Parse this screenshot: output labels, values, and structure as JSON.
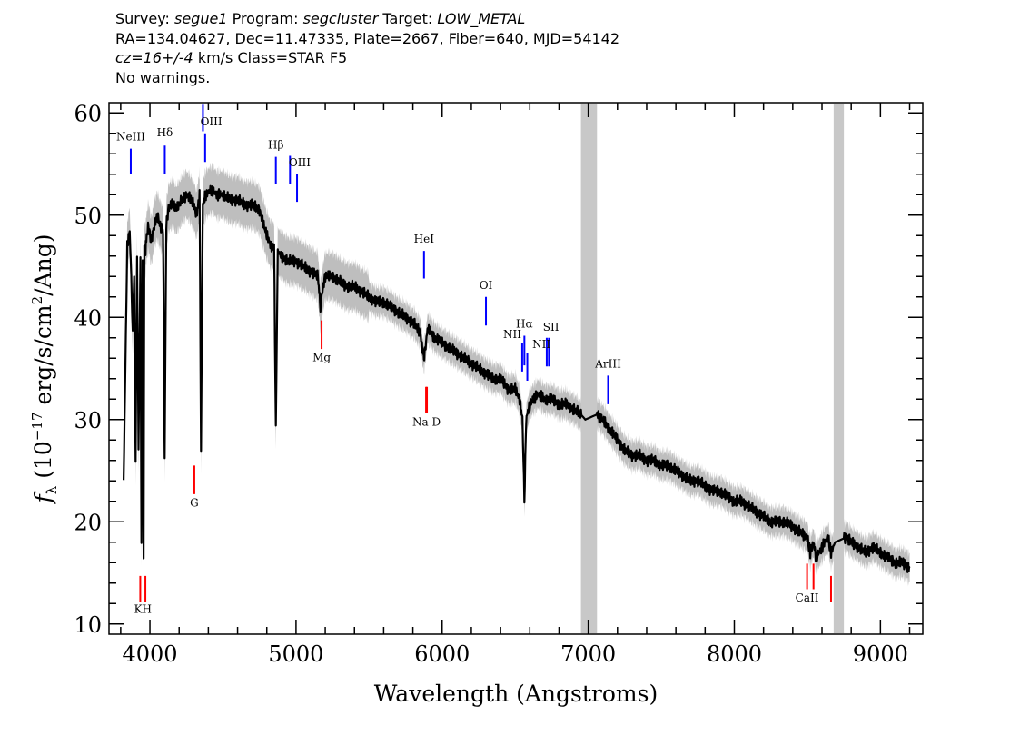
{
  "header": {
    "survey_label": "Survey:",
    "survey": "segue1",
    "program_label": "Program:",
    "program": "segcluster",
    "target_label": "Target:",
    "target": "LOW_METAL",
    "position_line": "RA=134.04627, Dec=11.47335, Plate=2667, Fiber=640, MJD=54142",
    "cz_value": "cz=16+/-4",
    "cz_rest": "km/s Class=STAR F5",
    "warnings": "No warnings."
  },
  "colors": {
    "flux": "#000000",
    "error_band": "#bebebe",
    "masked_band": "#c8c8c8",
    "emission_line": "#0000ff",
    "absorption_line": "#ff0000"
  },
  "chart_data": {
    "type": "line",
    "title": "",
    "xlabel": "Wavelength (Angstroms)",
    "ylabel_symbol": "f",
    "ylabel_subscript": "λ",
    "ylabel_open": "(10",
    "ylabel_exp": "−17",
    "ylabel_mid": "erg/s/cm",
    "ylabel_exp2": "2",
    "ylabel_close": "/Ang)",
    "xlim": [
      3720,
      9290
    ],
    "ylim": [
      9.0,
      61.0
    ],
    "xticks": [
      4000,
      5000,
      6000,
      7000,
      8000,
      9000
    ],
    "yticks": [
      10,
      20,
      30,
      40,
      50,
      60
    ],
    "grid": false,
    "series": [
      {
        "x": [
          3820,
          3845,
          3862,
          3872,
          3882,
          3892,
          3902,
          3912,
          3922,
          3935,
          3942,
          3950,
          3957,
          3962,
          3970,
          3978,
          3990,
          4000,
          4010,
          4030,
          4050,
          4070,
          4090,
          4101,
          4112,
          4125,
          4140,
          4160,
          4180,
          4200,
          4220,
          4250,
          4280,
          4300,
          4320,
          4340,
          4350,
          4362,
          4380,
          4420,
          4460,
          4500,
          4550,
          4600,
          4650,
          4700,
          4750,
          4800,
          4830,
          4850,
          4862,
          4875,
          4900,
          4950,
          5000,
          5050,
          5100,
          5150,
          5167,
          5175,
          5185,
          5200,
          5250,
          5300,
          5350,
          5400,
          5450,
          5500,
          5550,
          5600,
          5650,
          5700,
          5750,
          5800,
          5850,
          5875,
          5890,
          5900,
          5920,
          5950,
          6000,
          6050,
          6100,
          6150,
          6200,
          6250,
          6300,
          6350,
          6400,
          6450,
          6500,
          6530,
          6550,
          6563,
          6575,
          6590,
          6620,
          6660,
          6700,
          6750,
          6800,
          6850,
          6900,
          6950,
          6980,
          7060,
          7100,
          7150,
          7200,
          7250,
          7300,
          7350,
          7400,
          7450,
          7500,
          7550,
          7600,
          7650,
          7700,
          7750,
          7800,
          7850,
          7900,
          7950,
          8000,
          8050,
          8100,
          8150,
          8200,
          8250,
          8300,
          8350,
          8400,
          8450,
          8498,
          8520,
          8542,
          8560,
          8600,
          8640,
          8662,
          8690,
          8770,
          8800,
          8850,
          8900,
          8950,
          9000,
          9050,
          9100,
          9150,
          9200
        ],
        "y": [
          24,
          47,
          48.5,
          44,
          38.5,
          44,
          26,
          46,
          27,
          46,
          18,
          45,
          17,
          47,
          46.5,
          48,
          49,
          48,
          47.5,
          49,
          50,
          49,
          48.5,
          26,
          49,
          50.5,
          51,
          51,
          50.5,
          51,
          51.5,
          52,
          51.5,
          51,
          50,
          52,
          27,
          51,
          52,
          52.5,
          52,
          52,
          51.5,
          51.5,
          51,
          51,
          50.5,
          48,
          47,
          47,
          29,
          46.5,
          46,
          45.5,
          45.5,
          45,
          44.5,
          44,
          41,
          42,
          43,
          44,
          44,
          43.5,
          43,
          43,
          42.5,
          42,
          41.5,
          41.5,
          41,
          40.5,
          40,
          39.5,
          38.5,
          36,
          37.5,
          39,
          38.5,
          38,
          37.5,
          37,
          36.5,
          36,
          35.5,
          35,
          34.5,
          34,
          34,
          33,
          33,
          32,
          30,
          22,
          30,
          31,
          32,
          32.5,
          32,
          32,
          31.5,
          31.5,
          31,
          30.5,
          30,
          30.5,
          30,
          29,
          28,
          27,
          26.5,
          26.5,
          26,
          26,
          25.5,
          25.5,
          25,
          24.5,
          24,
          24,
          23.5,
          23,
          23,
          22.5,
          22,
          22,
          21.5,
          21,
          20.5,
          20,
          20,
          20,
          19.5,
          19,
          18.5,
          17,
          18,
          16.5,
          17.5,
          18.5,
          17,
          18,
          18.5,
          18,
          17.5,
          17,
          17.5,
          17,
          16.5,
          16,
          16,
          15.5
        ]
      }
    ],
    "masked_regions": [
      [
        6950,
        7060
      ],
      [
        8680,
        8750
      ]
    ],
    "emission_lines": [
      {
        "label": "NeIII",
        "x": 3869,
        "y_top": 56.5,
        "y_bottom": 54.0
      },
      {
        "label": "Hδ",
        "x": 4102,
        "y_top": 56.8,
        "y_bottom": 54.0
      },
      {
        "label": "OIII",
        "x": 4363,
        "y_top": 60.8,
        "y_bottom": 58.2
      },
      {
        "label": "",
        "x": 4378,
        "y_top": 58.0,
        "y_bottom": 55.2
      },
      {
        "label": "Hβ",
        "x": 4862,
        "y_top": 55.7,
        "y_bottom": 53.0
      },
      {
        "label": "OIII",
        "x": 4959,
        "y_top": 55.8,
        "y_bottom": 53.0
      },
      {
        "label": "",
        "x": 5007,
        "y_top": 54.0,
        "y_bottom": 51.3
      },
      {
        "label": "HeI",
        "x": 5876,
        "y_top": 46.5,
        "y_bottom": 43.8
      },
      {
        "label": "OI",
        "x": 6300,
        "y_top": 42.0,
        "y_bottom": 39.2
      },
      {
        "label": "NII",
        "x": 6548,
        "y_top": 37.5,
        "y_bottom": 34.7
      },
      {
        "label": "Hα",
        "x": 6563,
        "y_top": 38.2,
        "y_bottom": 35.3
      },
      {
        "label": "",
        "x": 6583,
        "y_top": 36.5,
        "y_bottom": 33.8
      },
      {
        "label": "NII",
        "x": 6716,
        "y_top": 38.0,
        "y_bottom": 35.2
      },
      {
        "label": "SII",
        "x": 6731,
        "y_top": 38.0,
        "y_bottom": 35.2
      },
      {
        "label": "ArIII",
        "x": 7136,
        "y_top": 34.3,
        "y_bottom": 31.5
      }
    ],
    "absorption_lines": [
      {
        "label": "K",
        "x": 3934,
        "y_top": 14.7,
        "y_bottom": 12.2
      },
      {
        "label": "H",
        "x": 3969,
        "y_top": 14.7,
        "y_bottom": 12.2
      },
      {
        "label": "G",
        "x": 4304,
        "y_top": 25.5,
        "y_bottom": 22.7
      },
      {
        "label": "Mg",
        "x": 5175,
        "y_top": 39.7,
        "y_bottom": 36.9
      },
      {
        "label": "Na",
        "x": 5890,
        "y_top": 33.2,
        "y_bottom": 30.6
      },
      {
        "label": "D",
        "x": 5896,
        "y_top": 33.2,
        "y_bottom": 30.6
      },
      {
        "label": "CaII",
        "x": 8498,
        "y_top": 15.9,
        "y_bottom": 13.4
      },
      {
        "label": "",
        "x": 8542,
        "y_top": 15.9,
        "y_bottom": 13.4
      },
      {
        "label": "",
        "x": 8662,
        "y_top": 14.7,
        "y_bottom": 12.2
      }
    ],
    "line_label_groups": [
      {
        "text": "NeIII",
        "x": 3869,
        "y": 57.3,
        "group": "emission"
      },
      {
        "text": "Hδ",
        "x": 4102,
        "y": 57.7,
        "group": "emission"
      },
      {
        "text": "OIII",
        "x": 4420,
        "y": 58.8,
        "group": "emission"
      },
      {
        "text": "Hβ",
        "x": 4862,
        "y": 56.5,
        "group": "emission"
      },
      {
        "text": "OIII",
        "x": 5025,
        "y": 54.8,
        "group": "emission"
      },
      {
        "text": "HeI",
        "x": 5876,
        "y": 47.3,
        "group": "emission"
      },
      {
        "text": "OI",
        "x": 6300,
        "y": 42.8,
        "group": "emission"
      },
      {
        "text": "NII",
        "x": 6480,
        "y": 38.0,
        "group": "emission"
      },
      {
        "text": "Hα",
        "x": 6563,
        "y": 39.0,
        "group": "emission"
      },
      {
        "text": "NII",
        "x": 6680,
        "y": 37.0,
        "group": "emission"
      },
      {
        "text": "SII",
        "x": 6745,
        "y": 38.7,
        "group": "emission"
      },
      {
        "text": "ArIII",
        "x": 7136,
        "y": 35.1,
        "group": "emission"
      },
      {
        "text": "KH",
        "x": 3952,
        "y": 11.1,
        "group": "absorption"
      },
      {
        "text": "G",
        "x": 4304,
        "y": 21.5,
        "group": "absorption"
      },
      {
        "text": "Mg",
        "x": 5175,
        "y": 35.7,
        "group": "absorption"
      },
      {
        "text": "Na  D",
        "x": 5893,
        "y": 29.4,
        "group": "absorption"
      },
      {
        "text": "CaII",
        "x": 8498,
        "y": 12.2,
        "group": "absorption"
      }
    ]
  }
}
